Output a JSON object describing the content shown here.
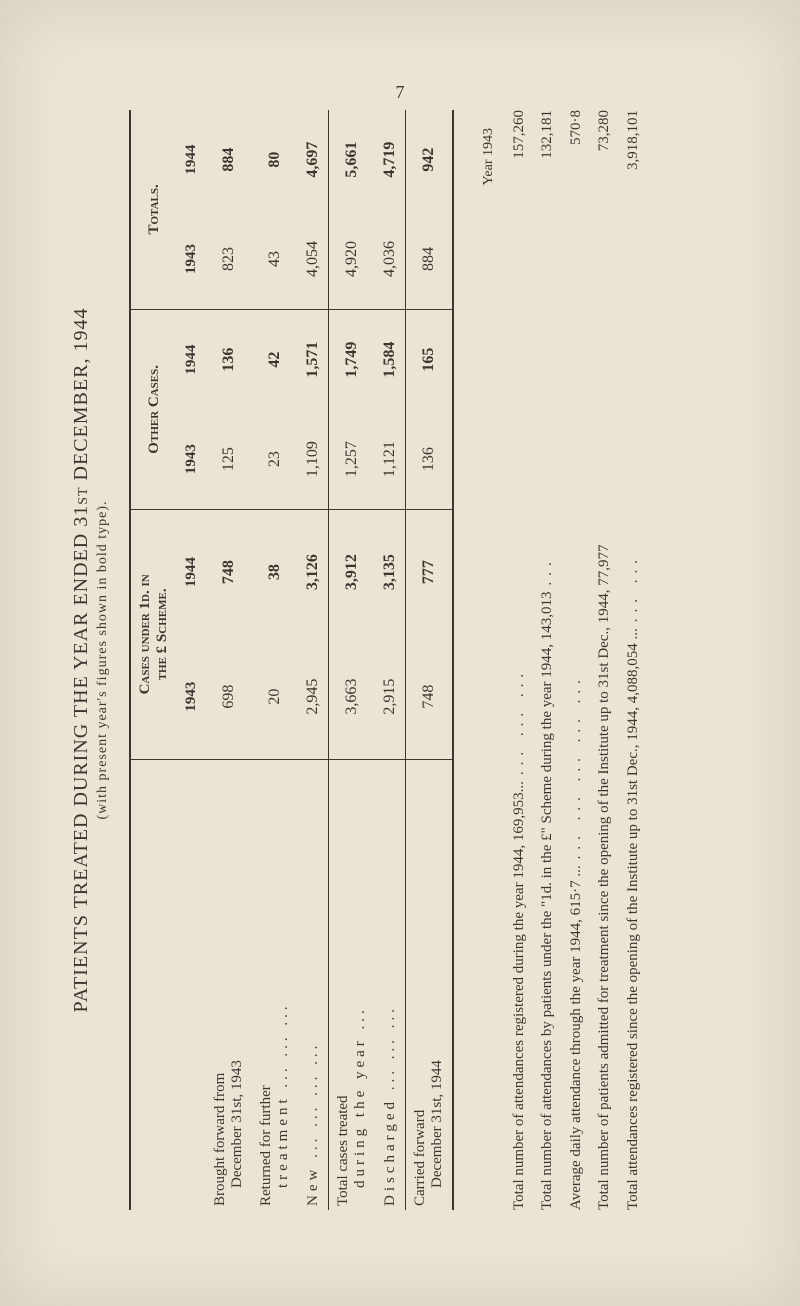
{
  "page_number": "7",
  "title": "PATIENTS TREATED DURING THE YEAR ENDED 31st DECEMBER, 1944",
  "subtitle": "(with present year's figures shown in bold type).",
  "table": {
    "headers": {
      "group1_line1": "Cases under 1d. in",
      "group1_line2": "the £ Scheme.",
      "group2": "Other Cases.",
      "group3": "Totals.",
      "y1943": "1943",
      "y1944": "1944"
    },
    "rows": [
      {
        "label_l1": "Brought forward from",
        "label_l2": "December 31st, 1943",
        "c1": "698",
        "c2": "748",
        "c3": "125",
        "c4": "136",
        "c5": "823",
        "c6": "884"
      },
      {
        "label_l1": "Returned for further",
        "label_l2": "treatment ...   ...   ...",
        "c1": "20",
        "c2": "38",
        "c3": "23",
        "c4": "42",
        "c5": "43",
        "c6": "80"
      },
      {
        "label_l1": "New   ...   ...   ...   ...",
        "label_l2": "",
        "c1": "2,945",
        "c2": "3,126",
        "c3": "1,109",
        "c4": "1,571",
        "c5": "4,054",
        "c6": "4,697"
      }
    ],
    "totals": {
      "label_l1": "Total cases treated",
      "label_l2": "during the year ...",
      "c1": "3,663",
      "c2": "3,912",
      "c3": "1,257",
      "c4": "1,749",
      "c5": "4,920",
      "c6": "5,661"
    },
    "discharged": {
      "label": "Discharged   ...   ...   ...",
      "c1": "2,915",
      "c2": "3,135",
      "c3": "1,121",
      "c4": "1,584",
      "c5": "4,036",
      "c6": "4,719"
    },
    "carried": {
      "label_l1": "Carried forward",
      "label_l2": "December 31st, 1944",
      "c1": "748",
      "c2": "777",
      "c3": "136",
      "c4": "165",
      "c5": "884",
      "c6": "942"
    }
  },
  "stats": {
    "year_header": "Year 1943",
    "items": [
      {
        "label": "Total number of attendances registered during the year 1944, 169,953...",
        "v1": "...",
        "v2": "157,260"
      },
      {
        "label": "Total number of attendances by patients under the \"1d. in the £\" Scheme during the year 1944, 143,013",
        "v1": "...",
        "v2": "132,181"
      },
      {
        "label": "Average daily attendance through the year 1944, 615·7 ...",
        "v1": "...",
        "v2": "570·8"
      },
      {
        "label": "Total number of patients admitted for treatment since the opening of the Institute up to 31st Dec., 1944, 77,977",
        "v1": "...",
        "v2": "73,280"
      },
      {
        "label": "Total attendances registered since the opening of the Institute up to 31st Dec., 1944, 4,088,054 ...",
        "v1": "...",
        "v2": "3,918,101"
      }
    ]
  },
  "dots": "..."
}
